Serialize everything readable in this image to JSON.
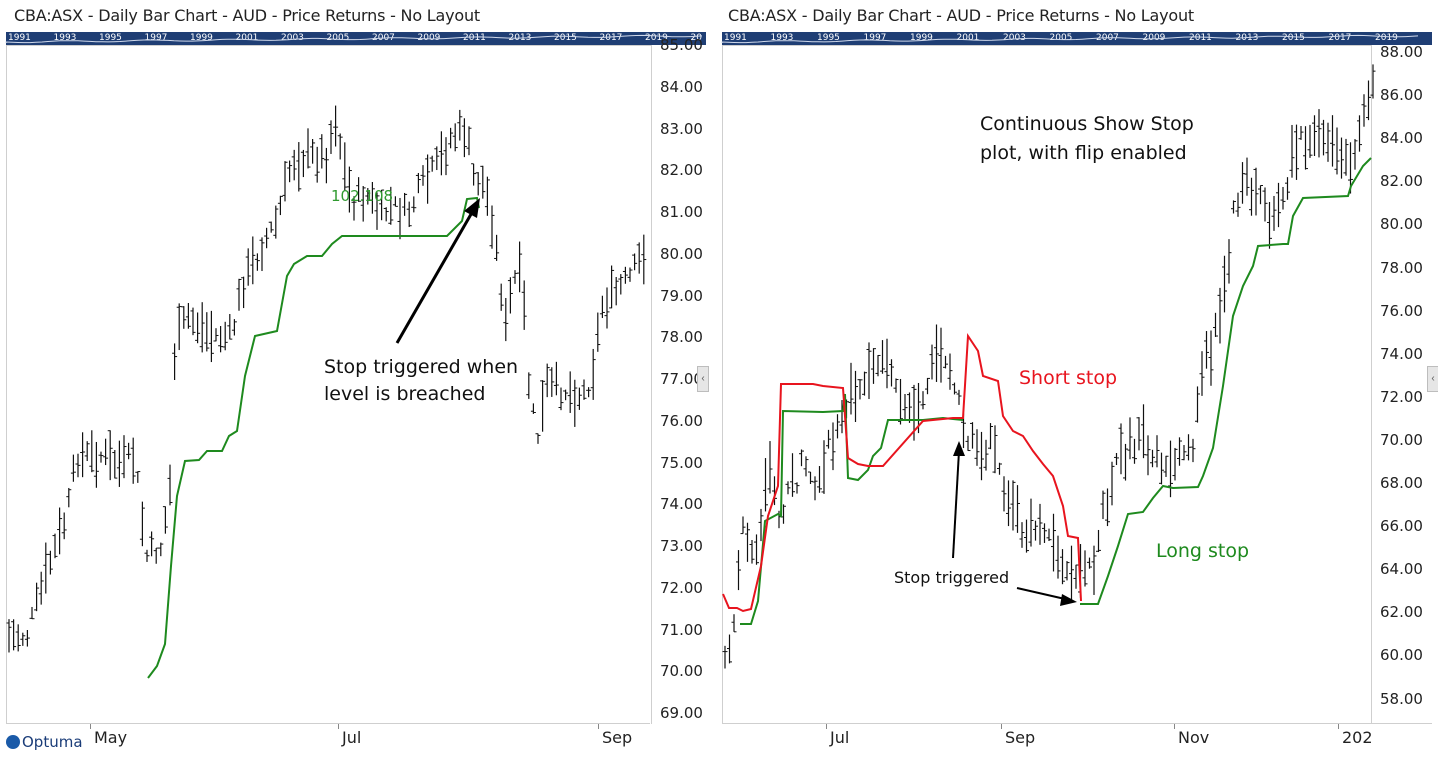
{
  "left_chart": {
    "title": "CBA:ASX - Daily Bar Chart - AUD - Price Returns - No Layout",
    "navigator_years": [
      "1991",
      "1993",
      "1995",
      "1997",
      "1999",
      "2001",
      "2003",
      "2005",
      "2007",
      "2009",
      "2011",
      "2013",
      "2015",
      "2017",
      "2019",
      "20"
    ],
    "y_ticks": [
      "85.00",
      "84.00",
      "83.00",
      "82.00",
      "81.00",
      "80.00",
      "79.00",
      "78.00",
      "77.00",
      "76.00",
      "75.00",
      "74.00",
      "73.00",
      "72.00",
      "71.00",
      "70.00",
      "69.00"
    ],
    "x_ticks": [
      "May",
      "Jul",
      "Sep"
    ],
    "stop_value_label": "102.108",
    "annotation": {
      "line1": "Stop triggered when",
      "line2": "level is breached"
    }
  },
  "right_chart": {
    "title": "CBA:ASX - Daily Bar Chart - AUD - Price Returns - No Layout",
    "navigator_years": [
      "1991",
      "1993",
      "1995",
      "1997",
      "1999",
      "2001",
      "2003",
      "2005",
      "2007",
      "2009",
      "2011",
      "2013",
      "2015",
      "2017",
      "2019"
    ],
    "y_ticks": [
      "88.00",
      "86.00",
      "84.00",
      "82.00",
      "80.00",
      "78.00",
      "76.00",
      "74.00",
      "72.00",
      "70.00",
      "68.00",
      "66.00",
      "64.00",
      "62.00",
      "60.00",
      "58.00"
    ],
    "x_ticks": [
      "Jul",
      "Sep",
      "Nov",
      "202"
    ],
    "annotation_main": {
      "line1": "Continuous Show Stop",
      "line2": "plot, with flip enabled"
    },
    "short_stop_label": "Short stop",
    "long_stop_label": "Long stop",
    "stop_triggered_label": "Stop triggered"
  },
  "logo": {
    "text": "Optuma"
  },
  "colors": {
    "long_stop": "#1e8a1e",
    "short_stop": "#e8141e",
    "navigator": "#1f3e74",
    "bars": "#111111",
    "stop_value": "#3aa83a"
  }
}
